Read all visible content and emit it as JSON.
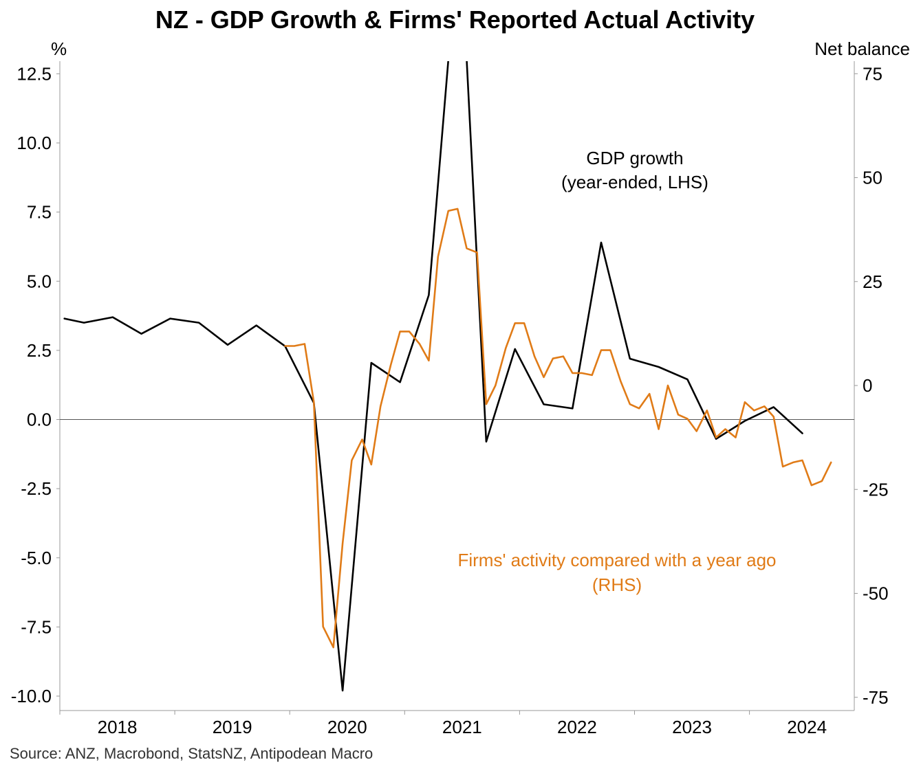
{
  "title": "NZ - GDP Growth & Firms' Reported Actual Activity",
  "source": "Source: ANZ, Macrobond, StatsNZ, Antipodean Macro",
  "colors": {
    "gdp": "#000000",
    "firms": "#E07B17",
    "zero_line": "#555555",
    "axis": "#999999"
  },
  "chart_data": {
    "type": "line",
    "title": "NZ - GDP Growth & Firms' Reported Actual Activity",
    "left_axis": {
      "unit": "%",
      "ylim": [
        -10.5,
        13
      ],
      "ticks": [
        12.5,
        10.0,
        7.5,
        5.0,
        2.5,
        0.0,
        -2.5,
        -5.0,
        -7.5,
        -10.0
      ],
      "tick_labels": [
        "12.5",
        "10.0",
        "7.5",
        "5.0",
        "2.5",
        "0.0",
        "-2.5",
        "-5.0",
        "-7.5",
        "-10.0"
      ]
    },
    "right_axis": {
      "unit": "Net balance",
      "ylim": [
        -78,
        78
      ],
      "ticks": [
        75,
        50,
        25,
        0,
        -25,
        -50,
        -75
      ],
      "tick_labels": [
        "75",
        "50",
        "25",
        "0",
        "-25",
        "-50",
        "-75"
      ]
    },
    "x_axis": {
      "xlim": [
        2017.5,
        2024.5
      ],
      "year_ticks": [
        2018,
        2019,
        2020,
        2021,
        2022,
        2023,
        2024
      ],
      "tick_labels": [
        "2018",
        "2019",
        "2020",
        "2021",
        "2022",
        "2023",
        "2024"
      ]
    },
    "annotations": {
      "gdp": [
        "GDP growth",
        "(year-ended, LHS)"
      ],
      "firms": [
        "Firms' activity compared with a year ago",
        "(RHS)"
      ]
    },
    "series": [
      {
        "name": "GDP growth (year-ended, LHS)",
        "axis": "left",
        "x": [
          2017.54,
          2017.71,
          2017.96,
          2018.21,
          2018.46,
          2018.71,
          2018.96,
          2019.21,
          2019.46,
          2019.71,
          2019.96,
          2020.21,
          2020.46,
          2020.71,
          2020.88,
          2021.04,
          2021.21,
          2021.46,
          2021.71,
          2021.96,
          2022.21,
          2022.46,
          2022.71,
          2022.96,
          2023.21,
          2023.46,
          2023.71,
          2023.96
        ],
        "values": [
          3.65,
          3.5,
          3.7,
          3.1,
          3.65,
          3.5,
          2.7,
          3.4,
          2.65,
          0.6,
          -9.8,
          2.05,
          1.35,
          4.5,
          13.0,
          13.0,
          -0.8,
          2.55,
          0.55,
          0.4,
          6.4,
          2.2,
          1.9,
          1.45,
          -0.7,
          -0.05,
          0.45,
          -0.5
        ]
      },
      {
        "name": "Firms' activity compared with a year ago (RHS)",
        "axis": "right",
        "x": [
          2019.46,
          2019.54,
          2019.63,
          2019.71,
          2019.79,
          2019.88,
          2019.96,
          2020.04,
          2020.13,
          2020.21,
          2020.29,
          2020.38,
          2020.46,
          2020.54,
          2020.63,
          2020.71,
          2020.79,
          2020.88,
          2020.96,
          2021.04,
          2021.13,
          2021.21,
          2021.29,
          2021.38,
          2021.46,
          2021.54,
          2021.63,
          2021.71,
          2021.79,
          2021.88,
          2021.96,
          2022.04,
          2022.13,
          2022.21,
          2022.29,
          2022.38,
          2022.46,
          2022.54,
          2022.63,
          2022.71,
          2022.79,
          2022.88,
          2022.96,
          2023.04,
          2023.13,
          2023.21,
          2023.29,
          2023.38,
          2023.46,
          2023.54,
          2023.63,
          2023.71,
          2023.79,
          2023.88,
          2023.96,
          2024.04,
          2024.13,
          2024.21
        ],
        "values": [
          9.5,
          9.5,
          10,
          -4,
          -58,
          -63,
          -38,
          -18,
          -13,
          -19,
          -5,
          5,
          13,
          13,
          10,
          6,
          31,
          42,
          42.5,
          33,
          32,
          -4.5,
          0,
          9,
          15,
          15,
          7,
          2,
          6.5,
          7,
          3,
          3,
          2.5,
          8.5,
          8.5,
          1,
          -4.5,
          -5.5,
          -2,
          -10.5,
          0,
          -7,
          -8,
          -11,
          -6,
          -12.5,
          -10.5,
          -12.5,
          -4,
          -6,
          -5,
          -7.5,
          -19.5,
          -18.5,
          -18,
          -24,
          -23,
          -18.5
        ]
      }
    ]
  }
}
